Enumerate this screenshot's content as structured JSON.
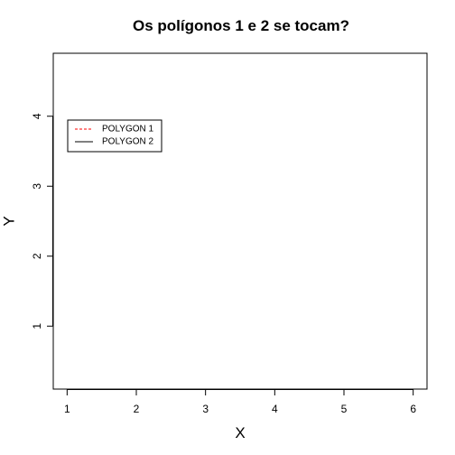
{
  "chart_data": {
    "type": "line",
    "title": "Os polígonos 1 e 2 se tocam?",
    "xlabel": "X",
    "ylabel": "Y",
    "xlim": [
      0.8,
      6.2
    ],
    "ylim": [
      0.1,
      4.9
    ],
    "xticks": [
      1,
      2,
      3,
      4,
      5,
      6
    ],
    "yticks": [
      1,
      2,
      3,
      4
    ],
    "grid": false,
    "legend_position": "top-left",
    "series": [
      {
        "name": "POLYGON 1",
        "color": "#ff0000",
        "line_style": "dashed",
        "x": [],
        "y": []
      },
      {
        "name": "POLYGON 2",
        "color": "#000000",
        "line_style": "solid",
        "x": [],
        "y": []
      }
    ]
  }
}
